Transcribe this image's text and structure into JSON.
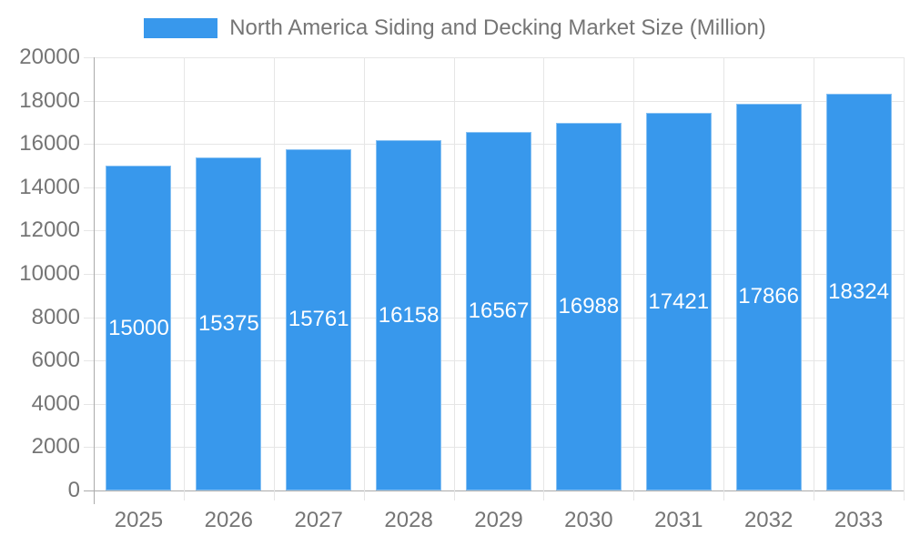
{
  "legend": {
    "swatch_icon": "legend-color-swatch"
  },
  "chart_data": {
    "type": "bar",
    "title": "North America Siding and Decking Market Size (Million)",
    "categories": [
      "2025",
      "2026",
      "2027",
      "2028",
      "2029",
      "2030",
      "2031",
      "2032",
      "2033"
    ],
    "series": [
      {
        "name": "North America Siding and Decking Market Size (Million)",
        "values": [
          15000,
          15375,
          15761,
          16158,
          16567,
          16988,
          17421,
          17866,
          18324
        ]
      }
    ],
    "bar_labels": [
      "15000",
      "15375",
      "15761",
      "16158",
      "16567",
      "16988",
      "17421",
      "17866",
      "18324"
    ],
    "xlabel": "",
    "ylabel": "",
    "ylim": [
      0,
      20000
    ],
    "ytick_step": 2000,
    "yticks": [
      0,
      2000,
      4000,
      6000,
      8000,
      10000,
      12000,
      14000,
      16000,
      18000,
      20000
    ],
    "grid": true,
    "legend_position": "top-center",
    "colors": {
      "bar_fill": "#3898EC",
      "bar_value_text": "#FFFFFF",
      "axis_text": "#757575",
      "gridline": "#E6E6E6",
      "axis_line": "#ABABAB",
      "background": "#FFFFFF"
    }
  }
}
